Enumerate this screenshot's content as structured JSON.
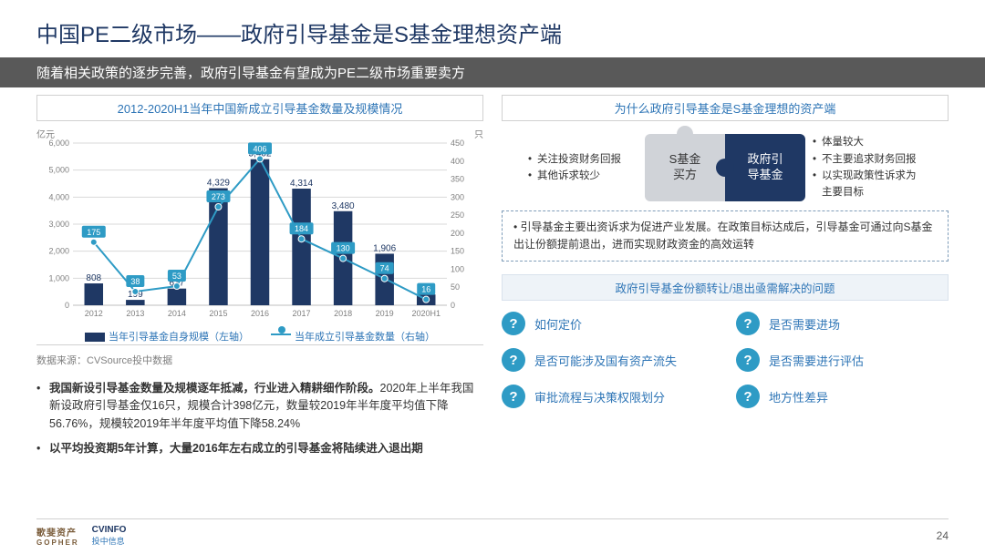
{
  "title": "中国PE二级市场——政府引导基金是S基金理想资产端",
  "subtitle": "随着相关政策的逐步完善，政府引导基金有望成为PE二级市场重要卖方",
  "chart": {
    "title": "2012-2020H1当年中国新成立引导基金数量及规模情况",
    "type": "bar+line",
    "unit_left": "亿元",
    "unit_right": "只",
    "categories": [
      "2012",
      "2013",
      "2014",
      "2015",
      "2016",
      "2017",
      "2018",
      "2019",
      "2020H1"
    ],
    "bar_values": [
      808,
      199,
      617,
      4329,
      5402,
      4314,
      3480,
      1906,
      398
    ],
    "bar_color": "#1f3864",
    "line_values": [
      175,
      38,
      53,
      273,
      406,
      184,
      130,
      74,
      16
    ],
    "line_color": "#2e9bc5",
    "marker_color": "#2e9bc5",
    "left_ylim": [
      0,
      6000
    ],
    "left_ytick_step": 1000,
    "right_ylim": [
      0,
      450
    ],
    "right_ytick_step": 50,
    "grid_color": "#d9d9d9",
    "axis_color": "#bfbfbf",
    "legend": {
      "bar": "当年引导基金自身规模（左轴）",
      "line": "当年成立引导基金数量（右轴）"
    },
    "label_fontsize": 10,
    "value_label_color": "#1f3864"
  },
  "source": "数据来源：CVSource投中数据",
  "left_bullets": [
    {
      "bold": "我国新设引导基金数量及规模逐年抵减，行业进入精耕细作阶段。",
      "rest": "2020年上半年我国新设政府引导基金仅16只，规模合计398亿元，数量较2019年半年度平均值下降56.76%，规模较2019年半年度平均值下降58.24%"
    },
    {
      "bold": "以平均投资期5年计算，大量2016年左右成立的引导基金将陆续进入退出期",
      "rest": ""
    }
  ],
  "right_panel_title": "为什么政府引导基金是S基金理想的资产端",
  "puzzle_left_bullets": [
    "关注投资财务回报",
    "其他诉求较少"
  ],
  "puzzle_right_bullets": [
    "体量较大",
    "不主要追求财务回报",
    "以实现政策性诉求为主要目标"
  ],
  "puzzle_left_label": "S基金\n买方",
  "puzzle_right_label": "政府引\n导基金",
  "note": "引导基金主要出资诉求为促进产业发展。在政策目标达成后，引导基金可通过向S基金出让份额提前退出，进而实现财政资金的高效运转",
  "questions_title": "政府引导基金份额转让/退出亟需解决的问题",
  "questions": [
    "如何定价",
    "是否需要进场",
    "是否可能涉及国有资产流失",
    "是否需要进行评估",
    "审批流程与决策权限划分",
    "地方性差异"
  ],
  "footer": {
    "logo1_top": "歌斐资产",
    "logo1_bottom": "GOPHER",
    "logo2_top": "CVINFO",
    "logo2_bottom": "投中信息",
    "page": "24"
  }
}
